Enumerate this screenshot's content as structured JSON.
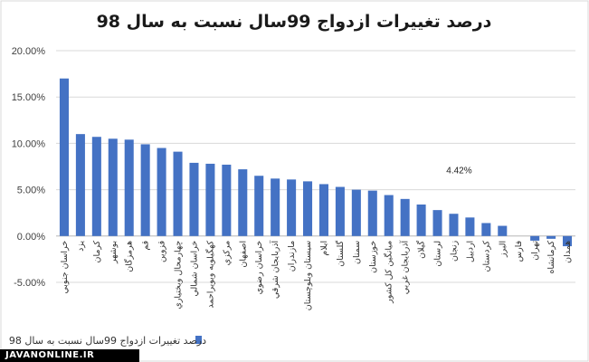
{
  "chart_data": {
    "type": "bar",
    "title": "درصد تغییرات ازدواج 99سال نسبت به  سال 98",
    "legend_label": "درصد تغییرات ازدواج 99سال نسبت به  سال 98",
    "legend_position": "bottom",
    "series_color": "#4472C4",
    "ylim": [
      -5,
      20
    ],
    "yticks": [
      -5,
      0,
      5,
      10,
      15,
      20
    ],
    "ytick_labels": [
      "-5.00%",
      "0.00%",
      "5.00%",
      "10.00%",
      "15.00%",
      "20.00%"
    ],
    "grid": true,
    "annotation": {
      "text": "4.42%",
      "category_index": 24,
      "value": 4.42
    },
    "categories": [
      "خراسان جنوبي",
      "يزد",
      "كرمان",
      "بوشهر",
      "هرمزگان",
      "قم",
      "قزوين",
      "چهارمحال وبختياري",
      "خراسان شمالي",
      "كهگيلويه وبويراحمد",
      "مركزي",
      "اصفهان",
      "خراسان رضوي",
      "آذربايجان شرقي",
      "مازندران",
      "سيستان وبلوچستان",
      "ايلام",
      "گلستان",
      "سمنان",
      "خوزستان",
      "ميانگين كل كشور",
      "آذربايجان غربي",
      "گيلان",
      "لرستان",
      "زنجان",
      "اردبيل",
      "كردستان",
      "البرز",
      "فارس",
      "تهران",
      "كرمانشاه",
      "همدان"
    ],
    "values": [
      17.0,
      11.0,
      10.7,
      10.5,
      10.4,
      9.9,
      9.5,
      9.1,
      7.9,
      7.8,
      7.7,
      7.2,
      6.5,
      6.2,
      6.1,
      5.9,
      5.6,
      5.3,
      5.0,
      4.9,
      4.42,
      4.0,
      3.4,
      2.8,
      2.4,
      2.0,
      1.4,
      1.1,
      0.0,
      -0.5,
      -0.3,
      -1.1
    ]
  },
  "watermark": "JAVANONLINE.IR"
}
